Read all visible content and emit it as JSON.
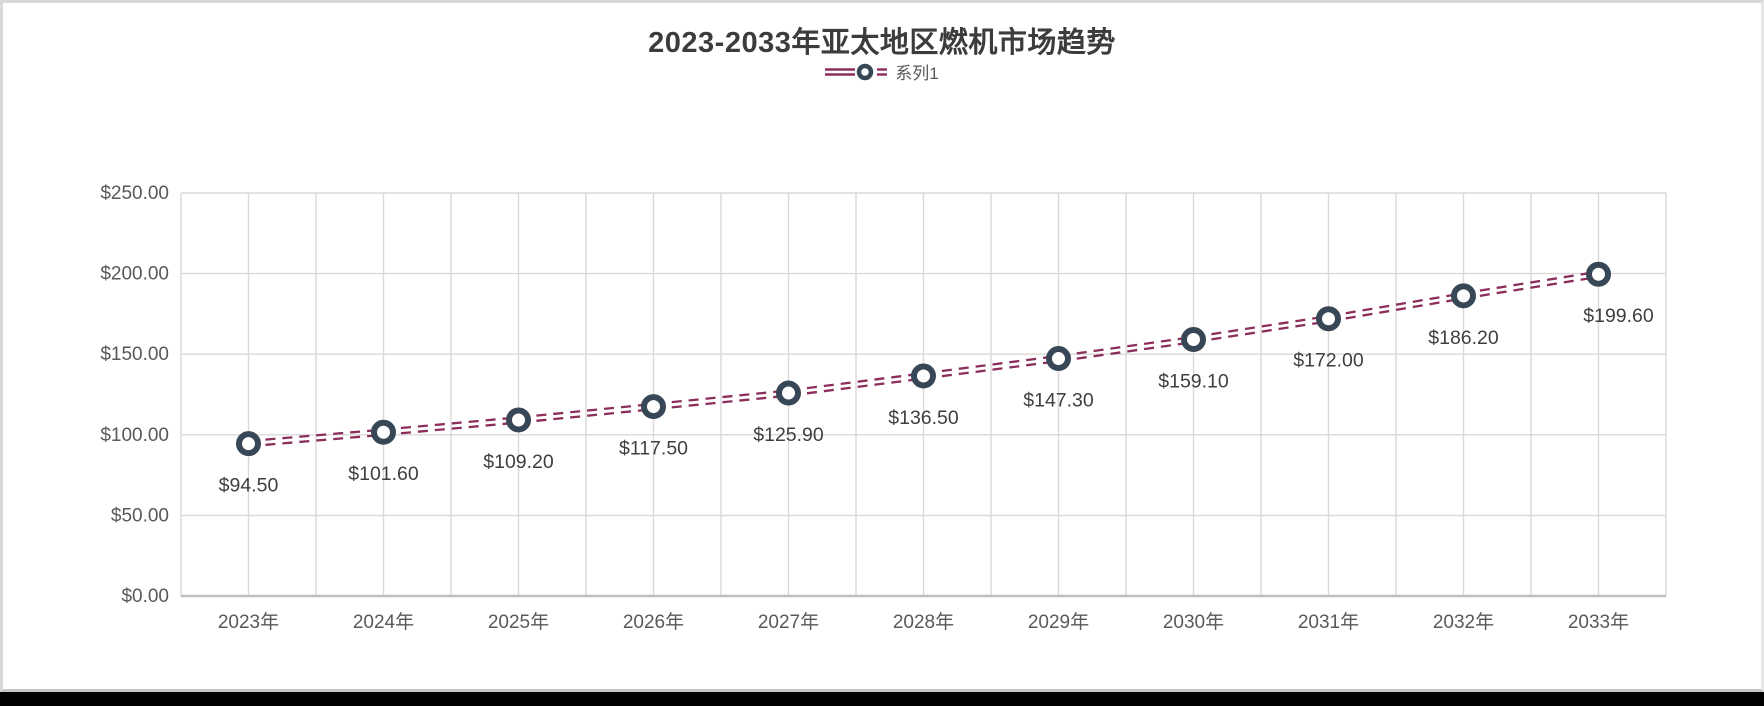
{
  "chart_data": {
    "type": "line",
    "title": "2023-2033年亚太地区燃机市场趋势",
    "legend_position": "top",
    "grid": {
      "horizontal": true,
      "vertical": true
    },
    "categories": [
      "2023年",
      "2024年",
      "2025年",
      "2026年",
      "2027年",
      "2028年",
      "2029年",
      "2030年",
      "2031年",
      "2032年",
      "2033年"
    ],
    "series": [
      {
        "name": "系列1",
        "values": [
          94.5,
          101.6,
          109.2,
          117.5,
          125.9,
          136.5,
          147.3,
          159.1,
          172.0,
          186.2,
          199.6
        ],
        "data_labels": [
          "$94.50",
          "$101.60",
          "$109.20",
          "$117.50",
          "$125.90",
          "$136.50",
          "$147.30",
          "$159.10",
          "$172.00",
          "$186.20",
          "$199.60"
        ]
      }
    ],
    "ylim": [
      0,
      250
    ],
    "y_tick_step": 50,
    "y_tick_labels": [
      "$0.00",
      "$50.00",
      "$100.00",
      "$150.00",
      "$200.00",
      "$250.00"
    ],
    "line_style": "double-dashed",
    "marker": "circle",
    "colors": {
      "line": "#8b2e5c",
      "marker_stroke": "#384755",
      "marker_fill": "#ffffff",
      "gridline": "#d9d9d9",
      "axis_line": "#bfbfbf",
      "title_text": "#3c3c3c",
      "axis_text": "#595959",
      "data_label_text": "#3f3f3f"
    }
  }
}
